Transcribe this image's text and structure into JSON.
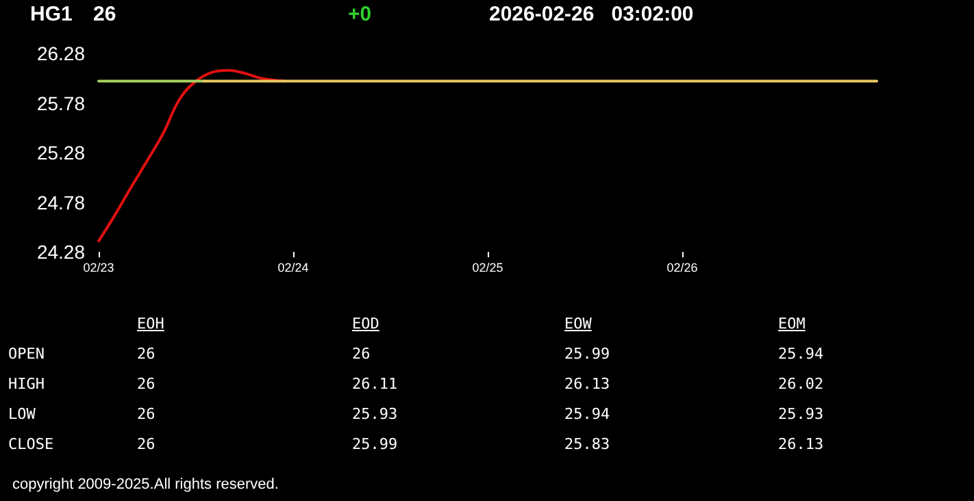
{
  "chart_data": [
    {
      "type": "line",
      "title": "HG1",
      "subtitle": "26",
      "annotations": [
        "+0",
        "2026-02-26   03:02:00"
      ],
      "x": [
        "2026-02-23T00:00",
        "2026-02-23T02:00",
        "2026-02-23T04:00",
        "2026-02-23T06:00",
        "2026-02-23T08:00",
        "2026-02-23T10:00",
        "2026-02-23T12:00",
        "2026-02-23T14:00",
        "2026-02-23T16:00",
        "2026-02-23T18:00",
        "2026-02-23T20:00",
        "2026-02-23T23:00"
      ],
      "series": [
        {
          "color": "#e01010",
          "values": [
            24.39,
            24.65,
            24.93,
            25.2,
            25.48,
            25.82,
            26.0,
            26.09,
            26.11,
            26.08,
            26.03,
            26.0
          ]
        },
        {
          "color": "#a8d060",
          "x": [
            "2026-02-23T00:00",
            "2026-02-23T13:00"
          ],
          "values": [
            26.0,
            26.0
          ]
        },
        {
          "color": "#e8c860",
          "x": [
            "2026-02-23T13:00",
            "2026-02-27T00:00"
          ],
          "values": [
            26.0,
            26.0
          ]
        }
      ],
      "xlim": [
        "2026-02-23T00:00",
        "2026-02-27T00:00"
      ],
      "xticks": [
        {
          "value": "2026-02-23",
          "label": "02/23"
        },
        {
          "value": "2026-02-24",
          "label": "02/24"
        },
        {
          "value": "2026-02-25",
          "label": "02/25"
        },
        {
          "value": "2026-02-26",
          "label": "02/26"
        }
      ],
      "ylim": [
        24.28,
        26.28
      ],
      "yticks": [
        24.28,
        24.78,
        25.28,
        25.78,
        26.28
      ],
      "grid": false,
      "marker": "none",
      "line_style": "solid"
    },
    {
      "type": "other",
      "categories": [
        "EOH",
        "EOD",
        "EOW",
        "EOM"
      ],
      "y_categories": [
        "OPEN",
        "HIGH",
        "LOW",
        "CLOSE"
      ],
      "annotations": [
        "26",
        "26",
        "25.99",
        "25.94",
        "26",
        "26.11",
        "26.13",
        "26.02",
        "26",
        "25.93",
        "25.94",
        "25.93",
        "26",
        "25.99",
        "25.83",
        "26.13",
        "copyright 2009-2025.All rights reserved."
      ]
    }
  ]
}
